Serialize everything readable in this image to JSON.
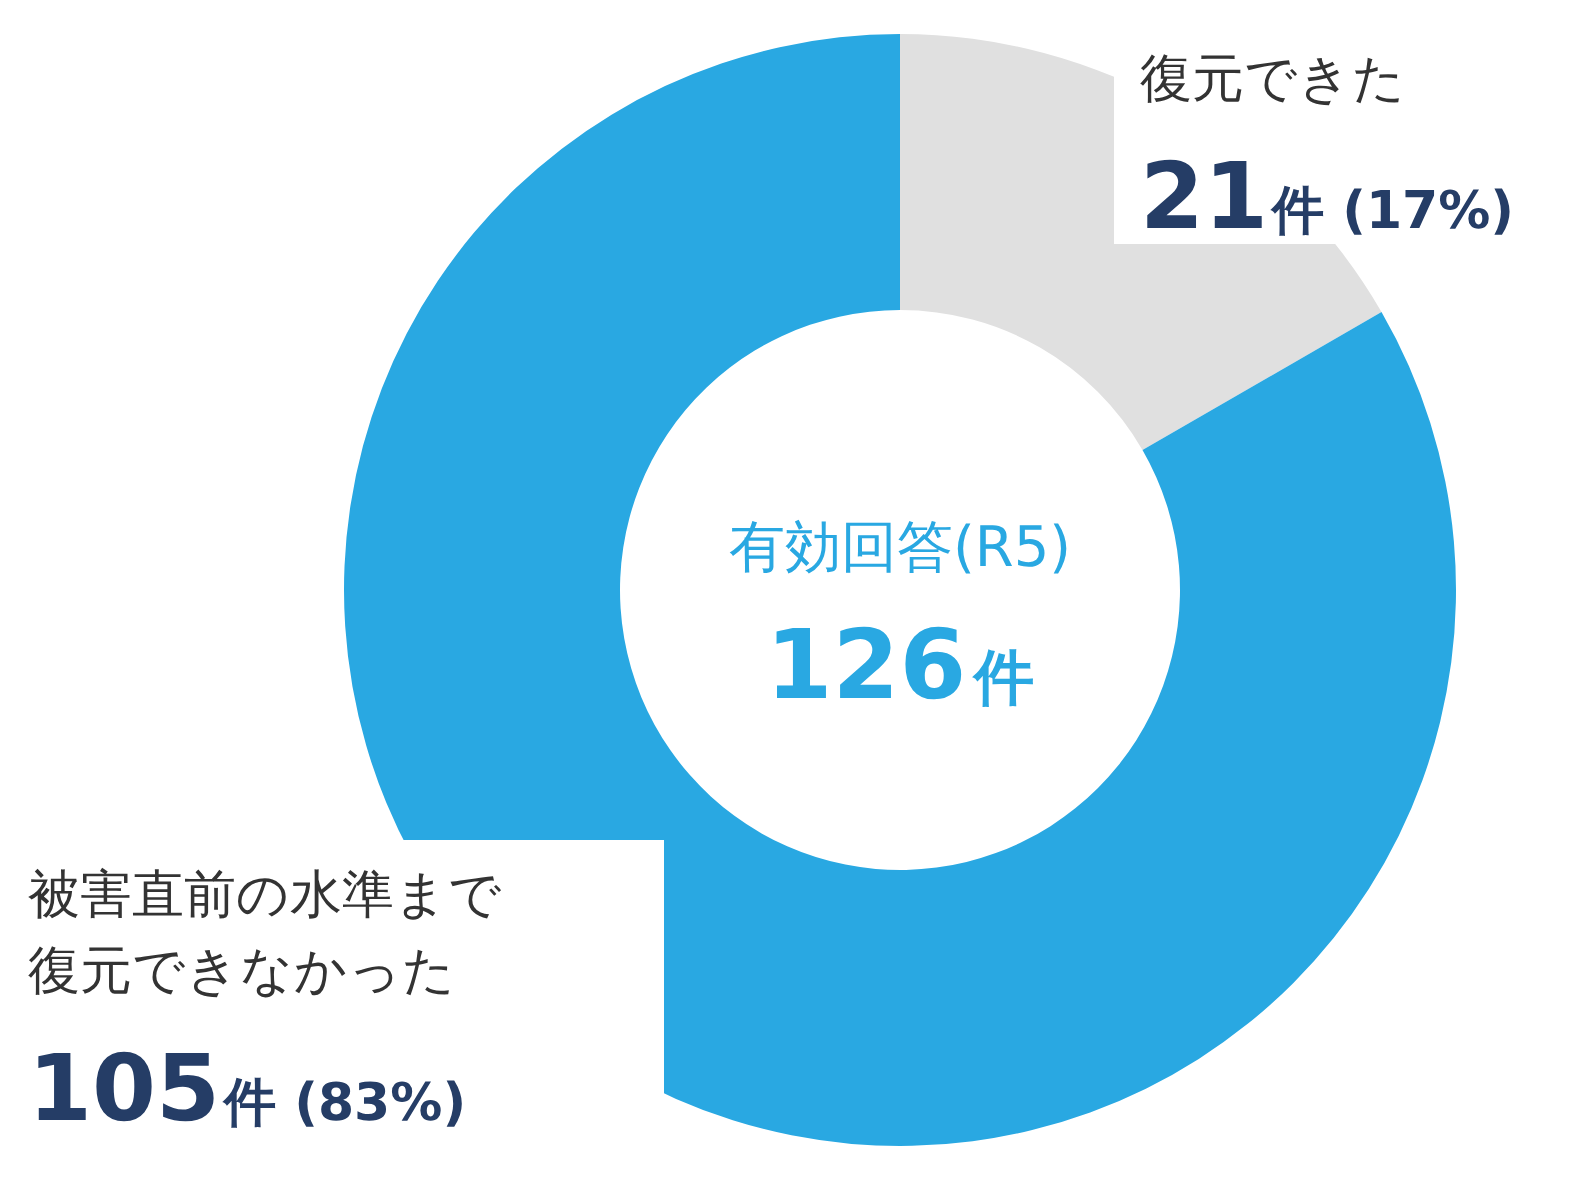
{
  "chart_data": {
    "type": "donut",
    "categories": [
      "復元できた",
      "被害直前の水準まで復元できなかった"
    ],
    "values": [
      21,
      105
    ],
    "colors": [
      "#e0e0e0",
      "#29a8e2"
    ],
    "value_labels": [
      "21件 (17%)",
      "105件 (83%)"
    ],
    "annotations": [
      "有効回答(R5)",
      "126件"
    ]
  }
}
